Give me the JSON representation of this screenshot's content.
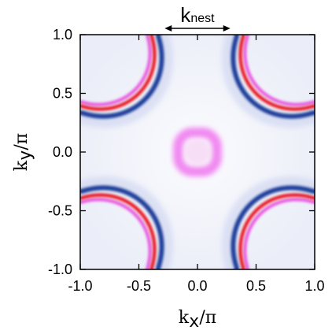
{
  "chart_data": {
    "type": "contour",
    "xlabel": {
      "base": "k",
      "sub": "x",
      "suffix": "/π"
    },
    "ylabel": {
      "base": "k",
      "sub": "y",
      "suffix": "/π"
    },
    "xlim": [
      -1.0,
      1.0
    ],
    "ylim": [
      -1.0,
      1.0
    ],
    "xticks": [
      "-1.0",
      "-0.5",
      "0.0",
      "0.5",
      "1.0"
    ],
    "yticks": [
      "1.0",
      "0.5",
      "0.0",
      "-0.5",
      "-1.0"
    ],
    "annotation": {
      "base": "k",
      "sub": "nest"
    },
    "annotation_arrow_x": [
      -0.28,
      0.28
    ],
    "series": [
      {
        "color": "#e84fe0",
        "offset": 0.26
      },
      {
        "color": "#e8000a",
        "offset": 0.225
      },
      {
        "color": "#1a3c9a",
        "offset": 0.17
      }
    ],
    "central_pocket": {
      "color": "#f07ef0",
      "half_width": 0.165
    },
    "colors": {
      "background_haze": "#eef0fa",
      "axis": "#000000"
    }
  }
}
